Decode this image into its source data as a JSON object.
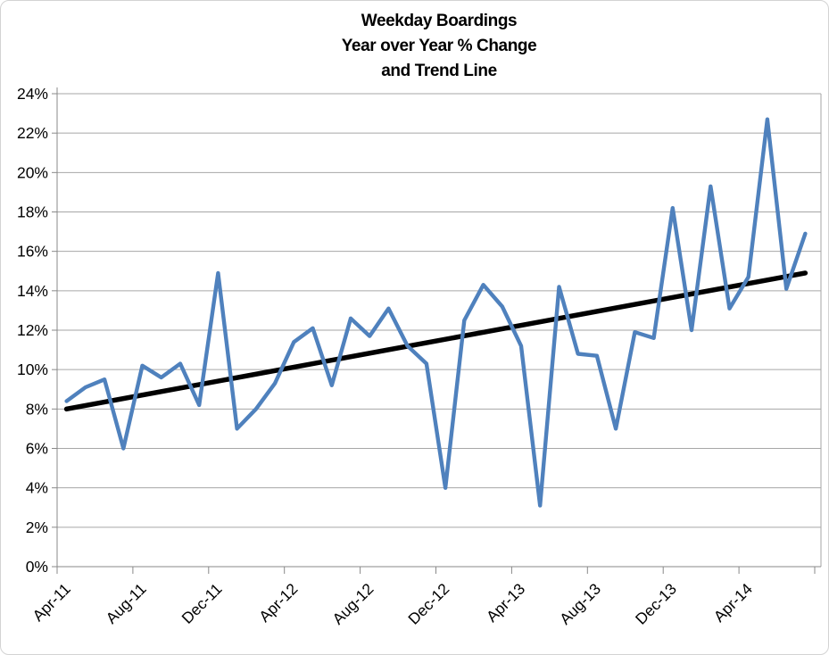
{
  "title": {
    "line1": "Weekday Boardings",
    "line2": "Year over Year % Change",
    "line3": "and Trend Line"
  },
  "colors": {
    "series_blue": "#4F81BD",
    "trend_black": "#000000",
    "gridline_gray": "#A6A6A6",
    "axis_gray": "#898989",
    "frame_border": "#D3D3D3"
  },
  "chart_data": {
    "type": "line",
    "title": "Weekday Boardings Year over Year % Change and Trend Line",
    "xlabel": "",
    "ylabel": "",
    "ylim": [
      0,
      24
    ],
    "ytick_step": 2,
    "grid": true,
    "legend": "none",
    "x": [
      "Apr-11",
      "May-11",
      "Jun-11",
      "Jul-11",
      "Aug-11",
      "Sep-11",
      "Oct-11",
      "Nov-11",
      "Dec-11",
      "Jan-12",
      "Feb-12",
      "Mar-12",
      "Apr-12",
      "May-12",
      "Jun-12",
      "Jul-12",
      "Aug-12",
      "Sep-12",
      "Oct-12",
      "Nov-12",
      "Dec-12",
      "Jan-13",
      "Feb-13",
      "Mar-13",
      "Apr-13",
      "May-13",
      "Jun-13",
      "Jul-13",
      "Aug-13",
      "Sep-13",
      "Oct-13",
      "Nov-13",
      "Dec-13",
      "Jan-14",
      "Feb-14",
      "Mar-14",
      "Apr-14",
      "May-14",
      "Jun-14",
      "Jul-14"
    ],
    "series": [
      {
        "name": "Weekday Boardings YoY % Change",
        "color": "#4F81BD",
        "values": [
          8.4,
          9.1,
          9.5,
          6.0,
          10.2,
          9.6,
          10.3,
          8.2,
          14.9,
          7.0,
          8.0,
          9.3,
          11.4,
          12.1,
          9.2,
          12.6,
          11.7,
          13.1,
          11.2,
          10.3,
          4.0,
          12.5,
          14.3,
          13.2,
          11.2,
          3.1,
          14.2,
          10.8,
          10.7,
          7.0,
          11.9,
          11.6,
          18.2,
          12.0,
          19.3,
          13.1,
          14.7,
          22.7,
          14.1,
          16.9
        ]
      },
      {
        "name": "Trend Line",
        "color": "#000000",
        "trend_endpoints": [
          8.0,
          14.9
        ]
      }
    ],
    "ytick_labels": [
      "0%",
      "2%",
      "4%",
      "6%",
      "8%",
      "10%",
      "12%",
      "14%",
      "16%",
      "18%",
      "20%",
      "22%",
      "24%"
    ],
    "x_axis_labels": [
      "Apr-11",
      "Aug-11",
      "Dec-11",
      "Apr-12",
      "Aug-12",
      "Dec-12",
      "Apr-13",
      "Aug-13",
      "Dec-13",
      "Apr-14"
    ],
    "x_label_rotation_deg": -45
  }
}
